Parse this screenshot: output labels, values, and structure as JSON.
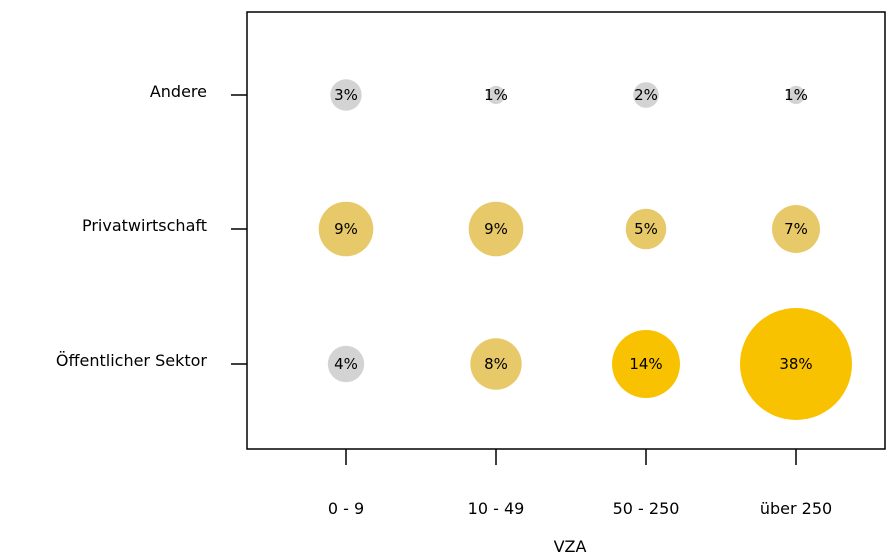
{
  "chart_data": {
    "type": "bubble",
    "xlabel": "VZA",
    "x_categories": [
      "0 - 9",
      "10 - 49",
      "50 - 250",
      "über 250"
    ],
    "y_categories": [
      "Andere",
      "Privatwirtschaft",
      "Öffentlicher Sektor"
    ],
    "points": [
      {
        "row": "Andere",
        "col": "0 - 9",
        "value": 3,
        "label": "3%"
      },
      {
        "row": "Andere",
        "col": "10 - 49",
        "value": 1,
        "label": "1%"
      },
      {
        "row": "Andere",
        "col": "50 - 250",
        "value": 2,
        "label": "2%"
      },
      {
        "row": "Andere",
        "col": "über 250",
        "value": 1,
        "label": "1%"
      },
      {
        "row": "Privatwirtschaft",
        "col": "0 - 9",
        "value": 9,
        "label": "9%"
      },
      {
        "row": "Privatwirtschaft",
        "col": "10 - 49",
        "value": 9,
        "label": "9%"
      },
      {
        "row": "Privatwirtschaft",
        "col": "50 - 250",
        "value": 5,
        "label": "5%"
      },
      {
        "row": "Privatwirtschaft",
        "col": "über 250",
        "value": 7,
        "label": "7%"
      },
      {
        "row": "Öffentlicher Sektor",
        "col": "0 - 9",
        "value": 4,
        "label": "4%"
      },
      {
        "row": "Öffentlicher Sektor",
        "col": "10 - 49",
        "value": 8,
        "label": "8%"
      },
      {
        "row": "Öffentlicher Sektor",
        "col": "50 - 250",
        "value": 14,
        "label": "14%"
      },
      {
        "row": "Öffentlicher Sektor",
        "col": "über 250",
        "value": 38,
        "label": "38%"
      }
    ],
    "colors": {
      "low": "#d3d3d3",
      "mid": "#e8c96a",
      "high": "#f9c200"
    },
    "grid": false,
    "legend": "none"
  }
}
